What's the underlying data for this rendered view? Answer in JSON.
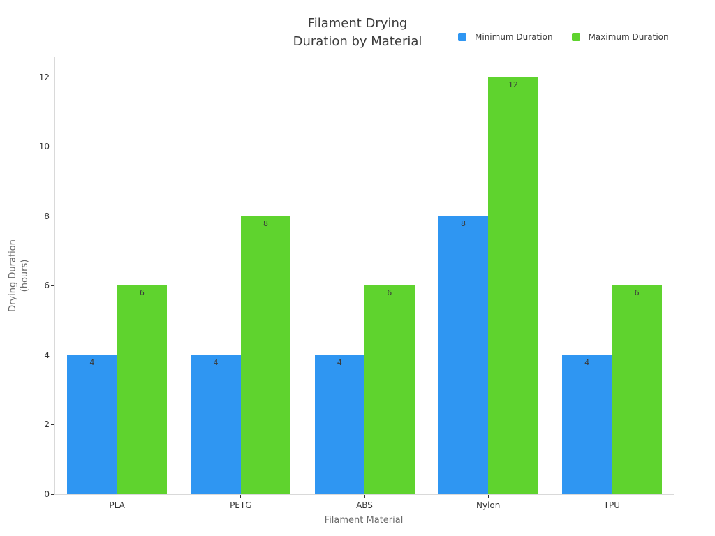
{
  "chart_data": {
    "type": "bar",
    "title_lines": [
      "Filament Drying",
      "Duration by Material"
    ],
    "categories": [
      "PLA",
      "PETG",
      "ABS",
      "Nylon",
      "TPU"
    ],
    "series": [
      {
        "name": "Minimum Duration",
        "color": "#2f96f2",
        "values": [
          4,
          4,
          4,
          8,
          4
        ]
      },
      {
        "name": "Maximum Duration",
        "color": "#5fd32e",
        "values": [
          6,
          8,
          6,
          12,
          6
        ]
      }
    ],
    "bar_value_labels": true,
    "xlabel": "Filament Material",
    "ylabel_lines": [
      "Drying Duration",
      "(hours)"
    ],
    "yticks": [
      0,
      2,
      4,
      6,
      8,
      10,
      12
    ],
    "ylim": [
      0,
      12.58
    ],
    "grid": false,
    "legend_position": "top-right",
    "colors": {
      "axis_line": "#d9d9d9",
      "tick_mark": "#333333",
      "tick_label": "#333333",
      "title_text": "#3b3b3b",
      "axis_title_text": "#6b6b6b",
      "bar_label_text": "#3a3a3a",
      "background": "#ffffff"
    }
  }
}
